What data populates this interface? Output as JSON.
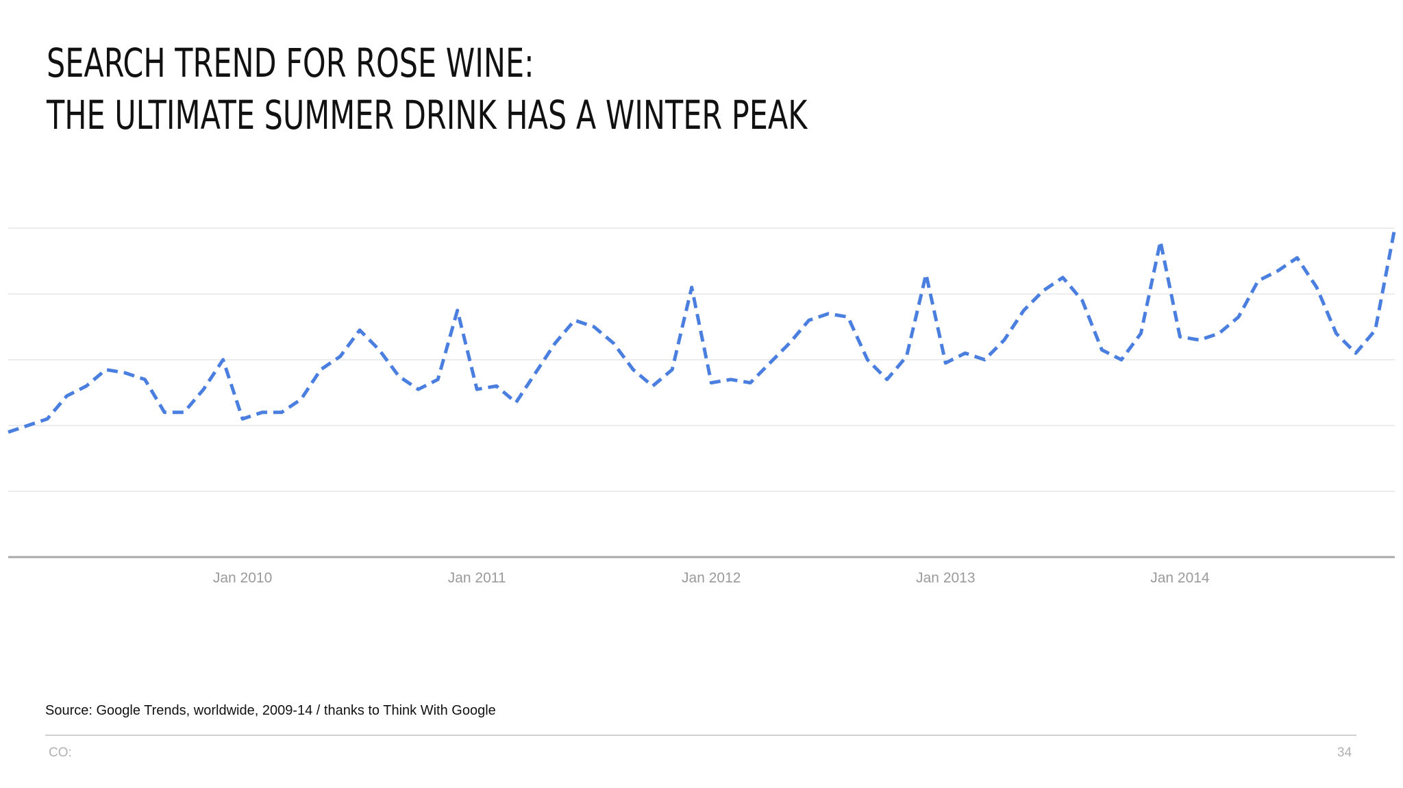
{
  "slide": {
    "title_line1": "SEARCH TREND FOR ROSE WINE:",
    "title_line2": "THE ULTIMATE SUMMER DRINK HAS A WINTER PEAK",
    "source": "Source: Google Trends, worldwide, 2009-14 / thanks to Think With Google",
    "footer_left": "CO:",
    "page_number": "34"
  },
  "chart_data": {
    "type": "line",
    "title": "",
    "xlabel": "",
    "ylabel": "",
    "ylim": [
      0,
      100
    ],
    "grid": true,
    "line_color": "#4a7fe0",
    "line_style": "dashed",
    "tick_labels": [
      "Jan 2010",
      "Jan 2011",
      "Jan 2012",
      "Jan 2013",
      "Jan 2014"
    ],
    "tick_months": [
      "2010-01",
      "2011-01",
      "2012-01",
      "2013-01",
      "2014-01"
    ],
    "x_range": [
      "2009-01",
      "2014-12"
    ],
    "series": [
      {
        "months": [
          "2009-01",
          "2009-02",
          "2009-03",
          "2009-04",
          "2009-05",
          "2009-06",
          "2009-07",
          "2009-08",
          "2009-09",
          "2009-10",
          "2009-11",
          "2009-12",
          "2010-01",
          "2010-02",
          "2010-03",
          "2010-04",
          "2010-05",
          "2010-06",
          "2010-07",
          "2010-08",
          "2010-09",
          "2010-10",
          "2010-11",
          "2010-12",
          "2011-01",
          "2011-02",
          "2011-03",
          "2011-04",
          "2011-05",
          "2011-06",
          "2011-07",
          "2011-08",
          "2011-09",
          "2011-10",
          "2011-11",
          "2011-12",
          "2012-01",
          "2012-02",
          "2012-03",
          "2012-04",
          "2012-05",
          "2012-06",
          "2012-07",
          "2012-08",
          "2012-09",
          "2012-10",
          "2012-11",
          "2012-12",
          "2013-01",
          "2013-02",
          "2013-03",
          "2013-04",
          "2013-05",
          "2013-06",
          "2013-07",
          "2013-08",
          "2013-09",
          "2013-10",
          "2013-11",
          "2013-12",
          "2014-01",
          "2014-02",
          "2014-03",
          "2014-04",
          "2014-05",
          "2014-06",
          "2014-07",
          "2014-08",
          "2014-09",
          "2014-10",
          "2014-11",
          "2014-12"
        ],
        "values": [
          38,
          40,
          42,
          49,
          52,
          57,
          56,
          54,
          44,
          44,
          51,
          60,
          42,
          44,
          44,
          48,
          57,
          61,
          69,
          63,
          55,
          51,
          54,
          75,
          51,
          52,
          47,
          56,
          65,
          72,
          70,
          65,
          57,
          52,
          57,
          82,
          53,
          54,
          53,
          59,
          65,
          72,
          74,
          73,
          60,
          54,
          61,
          86,
          59,
          62,
          60,
          66,
          75,
          81,
          85,
          78,
          63,
          60,
          68,
          96,
          67,
          66,
          68,
          73,
          84,
          87,
          91,
          82,
          68,
          62,
          69,
          100
        ]
      }
    ]
  }
}
